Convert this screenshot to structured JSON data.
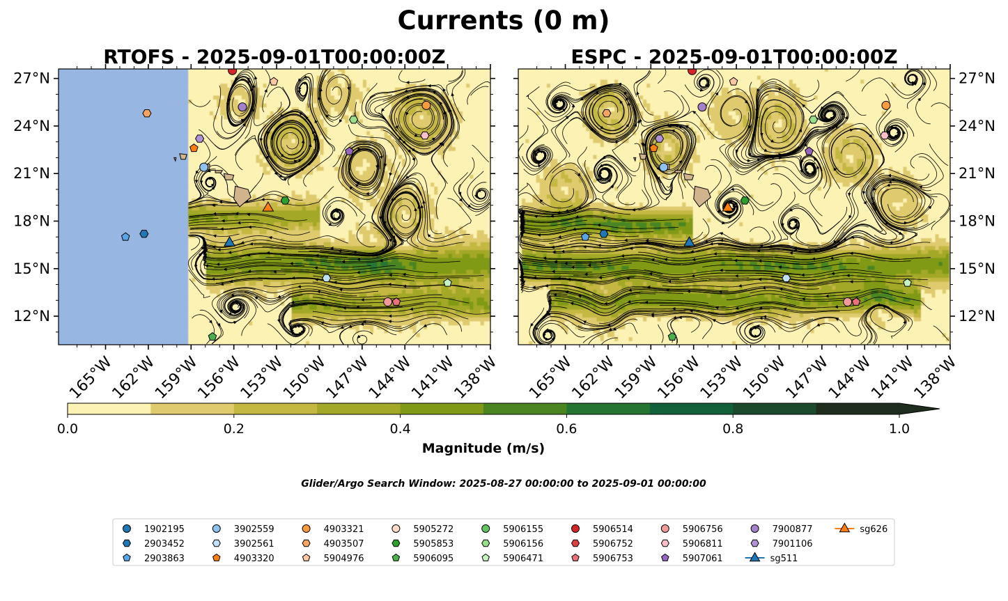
{
  "figure": {
    "title": "Currents (0 m)",
    "search_window": "Glider/Argo Search Window: 2025-08-27 00:00:00 to 2025-09-01 00:00:00"
  },
  "chart_data": [
    {
      "type": "heatmap",
      "title": "RTOFS - 2025-09-01T00:00:00Z",
      "xlabel": "",
      "ylabel": "",
      "xlim": [
        -168.3,
        -138.0
      ],
      "ylim": [
        10.2,
        27.6
      ],
      "x_ticks": [
        "165°W",
        "162°W",
        "159°W",
        "156°W",
        "153°W",
        "150°W",
        "147°W",
        "144°W",
        "141°W",
        "138°W"
      ],
      "y_ticks": [
        "27°N",
        "24°N",
        "21°N",
        "18°N",
        "15°N",
        "12°N"
      ],
      "model_coverage_min_lon": -159.2,
      "streamlines": true
    },
    {
      "type": "heatmap",
      "title": "ESPC - 2025-09-01T00:00:00Z",
      "xlabel": "",
      "ylabel": "",
      "xlim": [
        -168.3,
        -138.0
      ],
      "ylim": [
        10.2,
        27.6
      ],
      "x_ticks": [
        "165°W",
        "162°W",
        "159°W",
        "156°W",
        "153°W",
        "150°W",
        "147°W",
        "144°W",
        "141°W",
        "138°W"
      ],
      "y_ticks": [
        "27°N",
        "24°N",
        "21°N",
        "18°N",
        "15°N",
        "12°N"
      ],
      "model_coverage_min_lon": -168.3,
      "streamlines": true
    }
  ],
  "colorbar": {
    "label": "Magnitude (m/s)",
    "ticks": [
      "0.0",
      "0.2",
      "0.4",
      "0.6",
      "0.8",
      "1.0"
    ],
    "range": [
      0,
      1.0
    ],
    "extend": "max",
    "colors": [
      "#fbf2b4",
      "#dfcb6e",
      "#c4b742",
      "#a3a828",
      "#809a18",
      "#4a8520",
      "#257432",
      "#12613a",
      "#1b4a2c",
      "#1f2d1f"
    ]
  },
  "colors": {
    "land": "#d2b48c",
    "nodata": "#97b6e2",
    "streamline": "#000000"
  },
  "markers": [
    {
      "id": "1902195",
      "shape": "circle",
      "color": "#1f77b4",
      "lon": null,
      "lat": null
    },
    {
      "id": "2903452",
      "shape": "hexagon",
      "color": "#1f77b4",
      "lon": -162.3,
      "lat": 17.2
    },
    {
      "id": "2903863",
      "shape": "pentagon",
      "color": "#5aa5e6",
      "lon": -163.6,
      "lat": 17.0
    },
    {
      "id": "3902559",
      "shape": "circle",
      "color": "#8fc2ee",
      "lon": -158.1,
      "lat": 21.4
    },
    {
      "id": "3902561",
      "shape": "hexagon",
      "color": "#c2e1f7",
      "lon": -149.5,
      "lat": 14.4
    },
    {
      "id": "4903320",
      "shape": "pentagon",
      "color": "#ff7f0e",
      "lon": -158.8,
      "lat": 22.6
    },
    {
      "id": "4903321",
      "shape": "circle",
      "color": "#f99a3c",
      "lon": -142.5,
      "lat": 25.3
    },
    {
      "id": "4903507",
      "shape": "hexagon",
      "color": "#f5a462",
      "lon": -162.1,
      "lat": 24.8
    },
    {
      "id": "5904976",
      "shape": "pentagon",
      "color": "#fcc7a1",
      "lon": -153.2,
      "lat": 26.8
    },
    {
      "id": "5905272",
      "shape": "circle",
      "color": "#fdddc7",
      "lon": null,
      "lat": null
    },
    {
      "id": "5905853",
      "shape": "hexagon",
      "color": "#2ca02c",
      "lon": -152.4,
      "lat": 19.3
    },
    {
      "id": "5906095",
      "shape": "pentagon",
      "color": "#4caf4c",
      "lon": -157.5,
      "lat": 10.7
    },
    {
      "id": "5906155",
      "shape": "circle",
      "color": "#64c464",
      "lon": null,
      "lat": null
    },
    {
      "id": "5906156",
      "shape": "hexagon",
      "color": "#98df8a",
      "lon": -147.6,
      "lat": 24.4
    },
    {
      "id": "5906471",
      "shape": "pentagon",
      "color": "#c6f2c0",
      "lon": -141.0,
      "lat": 14.1
    },
    {
      "id": "5906514",
      "shape": "circle",
      "color": "#d62728",
      "lon": -156.1,
      "lat": 27.5
    },
    {
      "id": "5906752",
      "shape": "hexagon",
      "color": "#dc4040",
      "lon": null,
      "lat": null
    },
    {
      "id": "5906753",
      "shape": "pentagon",
      "color": "#e8717a",
      "lon": -144.6,
      "lat": 12.9
    },
    {
      "id": "5906756",
      "shape": "circle",
      "color": "#f19a9a",
      "lon": -145.2,
      "lat": 12.9
    },
    {
      "id": "5906811",
      "shape": "hexagon",
      "color": "#f9c0c9",
      "lon": -142.6,
      "lat": 23.4
    },
    {
      "id": "5907061",
      "shape": "pentagon",
      "color": "#9467bd",
      "lon": -147.9,
      "lat": 22.4
    },
    {
      "id": "7900877",
      "shape": "circle",
      "color": "#a681cb",
      "lon": -155.4,
      "lat": 25.2
    },
    {
      "id": "7901106",
      "shape": "hexagon",
      "color": "#b292d6",
      "lon": -158.4,
      "lat": 23.2
    },
    {
      "id": "sg511",
      "shape": "triangle",
      "color": "#1f77b4",
      "lon": -156.3,
      "lat": 16.7
    },
    {
      "id": "sg626",
      "shape": "triangle",
      "color": "#ff7f0e",
      "lon": -153.6,
      "lat": 18.9
    }
  ],
  "legend": {
    "items": [
      "1902195",
      "2903452",
      "2903863",
      "3902559",
      "3902561",
      "4903320",
      "4903321",
      "4903507",
      "5904976",
      "5905272",
      "5905853",
      "5906095",
      "5906155",
      "5906156",
      "5906471",
      "5906514",
      "5906752",
      "5906753",
      "5906756",
      "5906811",
      "5907061",
      "7900877",
      "7901106",
      "sg511",
      "sg626"
    ]
  }
}
